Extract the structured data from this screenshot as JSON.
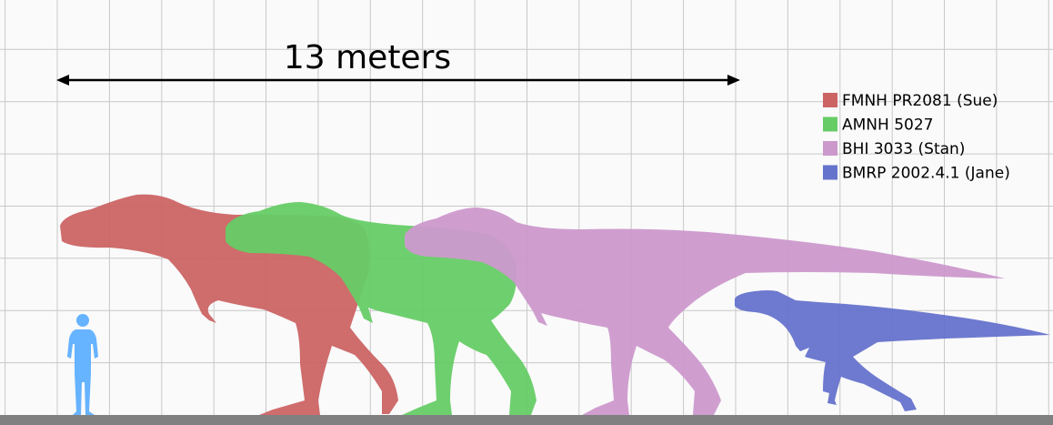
{
  "scale_bar": {
    "label": "13 meters",
    "length_m": 13,
    "grid_spacing_m": 1
  },
  "legend": [
    {
      "key": "sue",
      "label": "FMNH PR2081 (Sue)",
      "color": "#cc6464"
    },
    {
      "key": "amnh",
      "label": "AMNH 5027",
      "color": "#66cc66"
    },
    {
      "key": "stan",
      "label": "BHI 3033 (Stan)",
      "color": "#cc99cc"
    },
    {
      "key": "jane",
      "label": "BMRP 2002.4.1 (Jane)",
      "color": "#6673cc"
    }
  ],
  "human": {
    "icon": "human-silhouette-icon",
    "color": "#66b3ff"
  },
  "colors": {
    "grid": "#c8c8c8",
    "ground": "#808080",
    "background": "#fafafa"
  }
}
